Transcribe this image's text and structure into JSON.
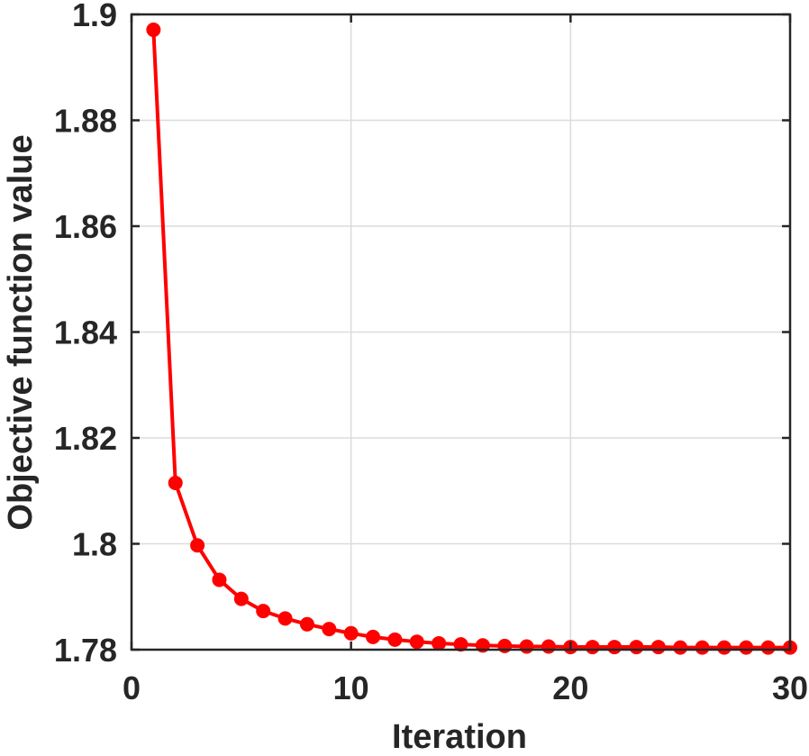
{
  "chart_data": {
    "type": "line",
    "title": "",
    "xlabel": "Iteration",
    "ylabel": "Objective function value",
    "xlim": [
      0,
      30
    ],
    "ylim": [
      1.78,
      1.9
    ],
    "xticks": [
      0,
      10,
      20,
      30
    ],
    "xtick_labels": [
      "0",
      "10",
      "20",
      "30"
    ],
    "yticks": [
      1.78,
      1.8,
      1.82,
      1.84,
      1.86,
      1.88,
      1.9
    ],
    "ytick_labels": [
      "1.78",
      "1.8",
      "1.82",
      "1.84",
      "1.86",
      "1.88",
      "1.9"
    ],
    "grid": true,
    "legend": "none",
    "series": [
      {
        "color": "#ff0000",
        "marker": "circle",
        "x": [
          1,
          2,
          3,
          4,
          5,
          6,
          7,
          8,
          9,
          10,
          11,
          12,
          13,
          14,
          15,
          16,
          17,
          18,
          19,
          20,
          21,
          22,
          23,
          24,
          25,
          26,
          27,
          28,
          29,
          30
        ],
        "values": [
          1.8971,
          1.8115,
          1.7997,
          1.7932,
          1.7896,
          1.7873,
          1.7859,
          1.7848,
          1.7839,
          1.7831,
          1.7824,
          1.7819,
          1.7815,
          1.7812,
          1.781,
          1.7808,
          1.7807,
          1.7806,
          1.7806,
          1.7805,
          1.7805,
          1.7805,
          1.7805,
          1.7805,
          1.7804,
          1.7804,
          1.7804,
          1.7804,
          1.7804,
          1.7804
        ]
      }
    ]
  }
}
